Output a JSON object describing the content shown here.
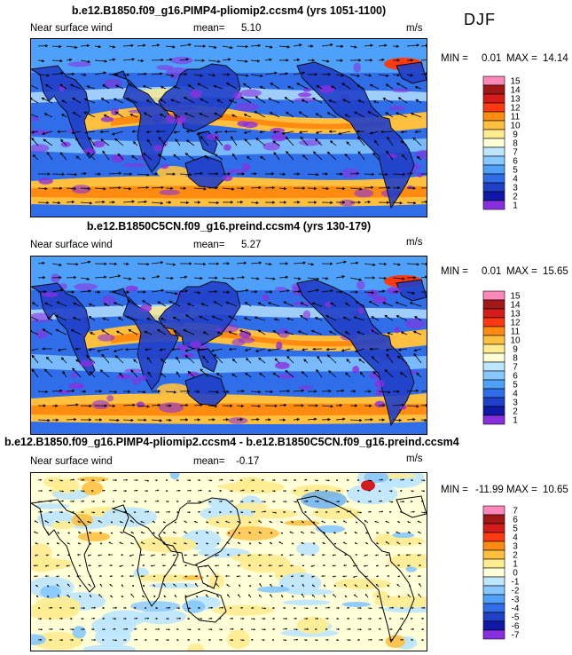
{
  "season": "DJF",
  "panels": [
    {
      "title": "b.e12.B1850.f09_g16.PIMP4-pliomip2.ccsm4 (yrs 1051-1100)",
      "variable": "Near surface wind",
      "mean_label": "mean=",
      "mean_value": "5.10",
      "units": "m/s",
      "min_label": "MIN =",
      "min_value": "0.01",
      "max_label": "MAX =",
      "max_value": "14.14",
      "map_style": "speed"
    },
    {
      "title": "b.e12.B1850C5CN.f09_g16.preind.ccsm4 (yrs 130-179)",
      "variable": "Near surface wind",
      "mean_label": "mean=",
      "mean_value": "5.27",
      "units": "m/s",
      "min_label": "MIN =",
      "min_value": "0.01",
      "max_label": "MAX =",
      "max_value": "15.65",
      "map_style": "speed"
    },
    {
      "title": "b.e12.B1850.f09_g16.PIMP4-pliomip2.ccsm4 - b.e12.B1850C5CN.f09_g16.preind.ccsm4",
      "variable": "Near surface wind",
      "mean_label": "mean=",
      "mean_value": "-0.17",
      "units": "m/s",
      "min_label": "MIN =",
      "min_value": "-11.99",
      "max_label": "MAX =",
      "max_value": "10.65",
      "map_style": "diff"
    }
  ],
  "colorbars": {
    "speed": {
      "labels": [
        "15",
        "14",
        "13",
        "12",
        "11",
        "10",
        "9",
        "8",
        "7",
        "6",
        "5",
        "4",
        "3",
        "2",
        "1"
      ],
      "colors": [
        "#ff88bb",
        "#a01818",
        "#d41c1c",
        "#ff3a10",
        "#ff8c10",
        "#ffc040",
        "#ffec90",
        "#ffffd8",
        "#bde6ff",
        "#86c8ff",
        "#4ea0f8",
        "#2f6ee8",
        "#2040c8",
        "#1018a8",
        "#8830e0"
      ]
    },
    "diff": {
      "labels": [
        "7",
        "6",
        "5",
        "4",
        "3",
        "2",
        "1",
        "0",
        "-1",
        "-2",
        "-3",
        "-4",
        "-5",
        "-6",
        "-7"
      ],
      "colors": [
        "#ff88bb",
        "#a01818",
        "#d41c1c",
        "#ff3a10",
        "#ff8c10",
        "#ffc040",
        "#ffec90",
        "#ffffd8",
        "#bde6ff",
        "#86c8ff",
        "#4ea0f8",
        "#2f6ee8",
        "#2040c8",
        "#1018a8",
        "#8830e0"
      ]
    }
  }
}
